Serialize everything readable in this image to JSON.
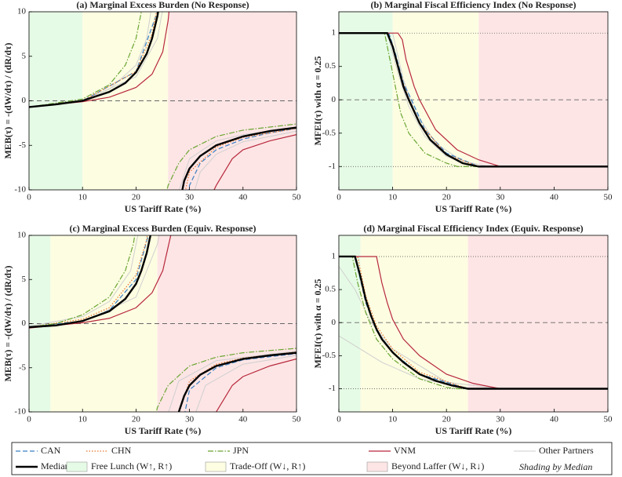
{
  "chart_data": [
    {
      "type": "line",
      "title": "(a) Marginal Excess Burden (No Response)",
      "xlabel": "US Tariff Rate (%)",
      "ylabel": "MEB(τ) = -(dW/dτ) / (dR/dτ)",
      "xlim": [
        0,
        50
      ],
      "xticks": [
        0,
        10,
        20,
        30,
        40,
        50
      ],
      "ylim": [
        -10,
        10
      ],
      "yticks": [
        -10,
        -5,
        0,
        5,
        10
      ],
      "hlines": [
        {
          "value": 0,
          "style": "dashed"
        }
      ],
      "regions": [
        {
          "name": "Free Lunch (W↑, R↑)",
          "color": "#e6fbe6",
          "range": [
            0,
            10
          ]
        },
        {
          "name": "Trade-Off (W↓, R↑)",
          "color": "#fdfde2",
          "range": [
            10,
            26
          ]
        },
        {
          "name": "Beyond Laffer (W↓, R↓)",
          "color": "#fde5e5",
          "range": [
            26,
            50
          ]
        }
      ],
      "others": {
        "name": "Other Partners",
        "color": "#cfcfcf",
        "lines": [
          {
            "x": [
              0,
              10,
              15,
              20,
              22,
              23.3,
              25,
              27,
              30,
              35,
              40,
              50
            ],
            "values": [
              -0.7,
              0.1,
              1.3,
              4,
              7,
              12,
              null,
              -12,
              -6.5,
              -4.5,
              -3.8,
              -3
            ]
          },
          {
            "x": [
              0,
              10,
              20,
              24,
              25.5,
              28,
              30,
              32,
              35,
              40,
              50
            ],
            "values": [
              -0.7,
              0,
              2.7,
              7,
              12,
              null,
              -12,
              -8,
              -6,
              -4.6,
              -3.4
            ]
          }
        ]
      },
      "series": [
        {
          "name": "CAN",
          "color": "#3a7fc4",
          "dash": "dashed",
          "x": [
            0,
            10,
            20,
            24,
            24.6,
            27,
            29.5,
            30,
            32,
            35,
            40,
            45,
            50
          ],
          "values": [
            -0.7,
            0,
            3.3,
            10,
            12,
            null,
            -12,
            -9.5,
            -7,
            -5.5,
            -4.3,
            -3.6,
            -3.1
          ]
        },
        {
          "name": "CHN",
          "color": "#e8742c",
          "dash": "dotted",
          "x": [
            0,
            10,
            20,
            23,
            24.5,
            26,
            28.5,
            30,
            35,
            40,
            50
          ],
          "values": [
            -0.7,
            0,
            3.3,
            7.5,
            12,
            null,
            -12,
            -8,
            -5.2,
            -4.1,
            -3.1
          ]
        },
        {
          "name": "JPN",
          "color": "#6aa532",
          "dash": "dashdot",
          "x": [
            0,
            10,
            15,
            18,
            20,
            21,
            21.5,
            22,
            25,
            26,
            28,
            30,
            35,
            40,
            50
          ],
          "values": [
            -0.7,
            0.2,
            1.8,
            4,
            7,
            10,
            12,
            null,
            -12,
            -9.5,
            -7,
            -5.5,
            -4,
            -3.3,
            -2.6
          ]
        },
        {
          "name": "VNM",
          "color": "#b7283c",
          "dash": "solid",
          "x": [
            0,
            10,
            15,
            20,
            23,
            25,
            26,
            26.5,
            29,
            33,
            35,
            38,
            40,
            45,
            50
          ],
          "values": [
            -0.7,
            -0.1,
            0.4,
            1.5,
            3,
            5.5,
            9,
            12,
            null,
            -12,
            -9.5,
            -6.5,
            -5.5,
            -4.5,
            -3.8
          ]
        },
        {
          "name": "Median",
          "color": "#000000",
          "dash": "solid",
          "x": [
            0,
            5,
            10,
            15,
            18,
            20,
            22,
            23,
            24,
            24.7,
            25.5,
            28,
            29,
            30,
            32,
            35,
            40,
            45,
            50
          ],
          "values": [
            -0.7,
            -0.4,
            0,
            1,
            2,
            3.2,
            5.3,
            7,
            9.5,
            12,
            null,
            -12,
            -9,
            -7.6,
            -6.2,
            -5,
            -4,
            -3.4,
            -3
          ]
        }
      ]
    },
    {
      "type": "line",
      "title": "(b) Marginal Fiscal Efficiency Index (No Response)",
      "xlabel": "US Tariff Rate (%)",
      "ylabel": "MFEI(τ) with α = 0.25",
      "xlim": [
        0,
        50
      ],
      "xticks": [
        0,
        10,
        20,
        30,
        40,
        50
      ],
      "ylim": [
        -1.35,
        1.32
      ],
      "yticks": [
        -1,
        -0.5,
        0,
        0.5,
        1
      ],
      "hlines": [
        {
          "value": 1,
          "style": "dotted"
        },
        {
          "value": 0,
          "style": "dashed"
        },
        {
          "value": -1,
          "style": "dotted"
        }
      ],
      "regions": [
        {
          "name": "Free Lunch (W↑, R↑)",
          "range": [
            0,
            10
          ]
        },
        {
          "name": "Trade-Off (W↓, R↑)",
          "range": [
            10,
            26
          ]
        },
        {
          "name": "Beyond Laffer (W↓, R↓)",
          "range": [
            26,
            50
          ]
        }
      ],
      "others": {
        "name": "Other Partners",
        "lines": [
          {
            "x": [
              0,
              9,
              11,
              13,
              16,
              20,
              25,
              50
            ],
            "values": [
              1,
              1,
              0.4,
              -0.1,
              -0.55,
              -0.85,
              -1,
              -1
            ]
          },
          {
            "x": [
              0,
              10,
              12,
              14,
              18,
              23,
              28,
              50
            ],
            "values": [
              1,
              1,
              0.3,
              -0.15,
              -0.65,
              -0.92,
              -1,
              -1
            ]
          }
        ]
      },
      "series": [
        {
          "name": "CAN",
          "x": [
            0,
            9.3,
            10.5,
            12,
            13.5,
            16,
            20,
            26,
            50
          ],
          "values": [
            1,
            1,
            0.7,
            0.25,
            0,
            -0.45,
            -0.8,
            -1,
            -1
          ]
        },
        {
          "name": "CHN",
          "x": [
            0,
            9.1,
            10.2,
            11.5,
            13,
            15,
            20,
            26,
            50
          ],
          "values": [
            1,
            1,
            0.75,
            0.35,
            0.02,
            -0.35,
            -0.82,
            -1,
            -1
          ]
        },
        {
          "name": "JPN",
          "x": [
            0,
            8.5,
            9.5,
            10.5,
            11.5,
            13,
            16,
            20,
            22,
            50
          ],
          "values": [
            1,
            1,
            0.6,
            0.2,
            -0.2,
            -0.5,
            -0.8,
            -0.95,
            -1,
            -1
          ]
        },
        {
          "name": "VNM",
          "x": [
            0,
            11,
            11.8,
            12.5,
            14,
            15,
            18,
            22,
            26,
            30,
            50
          ],
          "values": [
            1,
            1,
            0.9,
            0.6,
            0.2,
            0,
            -0.45,
            -0.75,
            -0.9,
            -1,
            -1
          ]
        },
        {
          "name": "Median",
          "x": [
            0,
            9,
            10,
            11,
            12,
            13,
            15,
            17,
            20,
            23,
            26,
            50
          ],
          "values": [
            1,
            1,
            0.8,
            0.5,
            0.2,
            0,
            -0.35,
            -0.6,
            -0.82,
            -0.95,
            -1,
            -1
          ]
        }
      ]
    },
    {
      "type": "line",
      "title": "(c) Marginal Excess Burden (Equiv. Response)",
      "xlabel": "US Tariff Rate (%)",
      "ylabel": "MEB(τ) = -(dW/dτ) / (dR/dτ)",
      "xlim": [
        0,
        50
      ],
      "xticks": [
        0,
        10,
        20,
        30,
        40,
        50
      ],
      "ylim": [
        -10,
        10
      ],
      "yticks": [
        -10,
        -5,
        0,
        5,
        10
      ],
      "hlines": [
        {
          "value": 0,
          "style": "dashed"
        }
      ],
      "regions": [
        {
          "name": "Free Lunch (W↑, R↑)",
          "range": [
            0,
            4
          ]
        },
        {
          "name": "Trade-Off (W↓, R↑)",
          "range": [
            4,
            24
          ]
        },
        {
          "name": "Beyond Laffer (W↓, R↓)",
          "range": [
            24,
            50
          ]
        }
      ],
      "others": {
        "name": "Other Partners",
        "lines": [
          {
            "x": [
              0,
              10,
              15,
              19,
              21,
              23,
              25,
              28,
              35,
              50
            ],
            "values": [
              -0.3,
              0.8,
              2.5,
              6,
              12,
              null,
              -12,
              -6.5,
              -4.2,
              -3.1
            ]
          },
          {
            "x": [
              0,
              10,
              20,
              24,
              25,
              28,
              30,
              33,
              40,
              50
            ],
            "values": [
              -0.5,
              0.2,
              3,
              9,
              12,
              null,
              -12,
              -7,
              -4.6,
              -3.6
            ]
          }
        ]
      },
      "series": [
        {
          "name": "CAN",
          "x": [
            0,
            10,
            15,
            20,
            22.3,
            22.8,
            25,
            28.5,
            30,
            35,
            40,
            50
          ],
          "values": [
            -0.4,
            0.3,
            1.5,
            5,
            10,
            12,
            null,
            -12,
            -7.5,
            -5,
            -4.1,
            -3.4
          ]
        },
        {
          "name": "CHN",
          "x": [
            0,
            10,
            15,
            20,
            22,
            22.5,
            24,
            27,
            30,
            35,
            40,
            50
          ],
          "values": [
            -0.4,
            0.5,
            1.8,
            5.5,
            9.5,
            12,
            null,
            -12,
            -6.5,
            -4.6,
            -3.9,
            -3.2
          ]
        },
        {
          "name": "JPN",
          "x": [
            0,
            5,
            10,
            15,
            18,
            19.5,
            20.3,
            21.5,
            23,
            24,
            26,
            30,
            35,
            40,
            50
          ],
          "values": [
            -0.4,
            0,
            1,
            3,
            6,
            9,
            12,
            null,
            -12,
            -9.5,
            -7,
            -4.8,
            -3.8,
            -3.3,
            -2.8
          ]
        },
        {
          "name": "VNM",
          "x": [
            0,
            10,
            15,
            20,
            23,
            25,
            26.5,
            27,
            31,
            34,
            35,
            38,
            40,
            45,
            50
          ],
          "values": [
            -0.5,
            0.1,
            0.6,
            1.8,
            3.5,
            6,
            10,
            12,
            null,
            -12,
            -10,
            -7,
            -6,
            -4.8,
            -4
          ]
        },
        {
          "name": "Median",
          "x": [
            0,
            5,
            10,
            15,
            18,
            20,
            21,
            22,
            22.7,
            23.2,
            24,
            27.5,
            28,
            29,
            30,
            32,
            35,
            40,
            45,
            50
          ],
          "values": [
            -0.4,
            -0.2,
            0.3,
            1.4,
            2.8,
            4.5,
            6,
            8,
            10,
            12,
            null,
            -12,
            -10,
            -8.2,
            -7,
            -5.8,
            -4.8,
            -4,
            -3.6,
            -3.3
          ]
        }
      ]
    },
    {
      "type": "line",
      "title": "(d) Marginal Fiscal Efficiency Index (Equiv. Response)",
      "xlabel": "US Tariff Rate (%)",
      "ylabel": "MFEI(τ) with α = 0.25",
      "xlim": [
        0,
        50
      ],
      "xticks": [
        0,
        10,
        20,
        30,
        40,
        50
      ],
      "ylim": [
        -1.35,
        1.32
      ],
      "yticks": [
        -1,
        -0.5,
        0,
        0.5,
        1
      ],
      "hlines": [
        {
          "value": 1,
          "style": "dotted"
        },
        {
          "value": 0,
          "style": "dashed"
        },
        {
          "value": -1,
          "style": "dotted"
        }
      ],
      "regions": [
        {
          "name": "Free Lunch (W↑, R↑)",
          "range": [
            0,
            4
          ]
        },
        {
          "name": "Trade-Off (W↓, R↑)",
          "range": [
            4,
            24
          ]
        },
        {
          "name": "Beyond Laffer (W↓, R↓)",
          "range": [
            24,
            50
          ]
        }
      ],
      "others": {
        "name": "Other Partners",
        "lines": [
          {
            "x": [
              0,
              3,
              6,
              10,
              20,
              30,
              50
            ],
            "values": [
              0.85,
              0.5,
              0,
              -0.4,
              -0.9,
              -1,
              -1
            ]
          },
          {
            "x": [
              0,
              3,
              8,
              15,
              25,
              50
            ],
            "values": [
              -0.2,
              -0.35,
              -0.6,
              -0.85,
              -1,
              -1
            ]
          }
        ]
      },
      "series": [
        {
          "name": "CAN",
          "x": [
            0,
            3,
            4,
            5,
            7,
            10,
            15,
            24,
            50
          ],
          "values": [
            1,
            1,
            0.65,
            0.3,
            -0.12,
            -0.45,
            -0.78,
            -1,
            -1
          ]
        },
        {
          "name": "CHN",
          "x": [
            0,
            3.5,
            5,
            7,
            10,
            15,
            24,
            50
          ],
          "values": [
            1,
            1,
            0.4,
            -0.05,
            -0.4,
            -0.75,
            -1,
            -1
          ]
        },
        {
          "name": "JPN",
          "x": [
            0,
            2.5,
            3.5,
            5,
            7,
            10,
            15,
            20,
            22,
            50
          ],
          "values": [
            1,
            1,
            0.6,
            0.15,
            -0.25,
            -0.55,
            -0.85,
            -0.98,
            -1,
            -1
          ]
        },
        {
          "name": "VNM",
          "x": [
            0,
            7,
            8,
            9,
            10,
            12,
            15,
            20,
            25,
            30,
            50
          ],
          "values": [
            1,
            1,
            0.6,
            0.3,
            0.05,
            -0.25,
            -0.5,
            -0.78,
            -0.92,
            -1,
            -1
          ]
        },
        {
          "name": "Median",
          "x": [
            0,
            3,
            4,
            5,
            6,
            7,
            8,
            10,
            12,
            15,
            18,
            21,
            24,
            50
          ],
          "values": [
            1,
            1,
            0.7,
            0.35,
            0.1,
            -0.1,
            -0.25,
            -0.45,
            -0.6,
            -0.78,
            -0.88,
            -0.95,
            -1,
            -1
          ]
        }
      ]
    }
  ],
  "note": "Shading by Median"
}
